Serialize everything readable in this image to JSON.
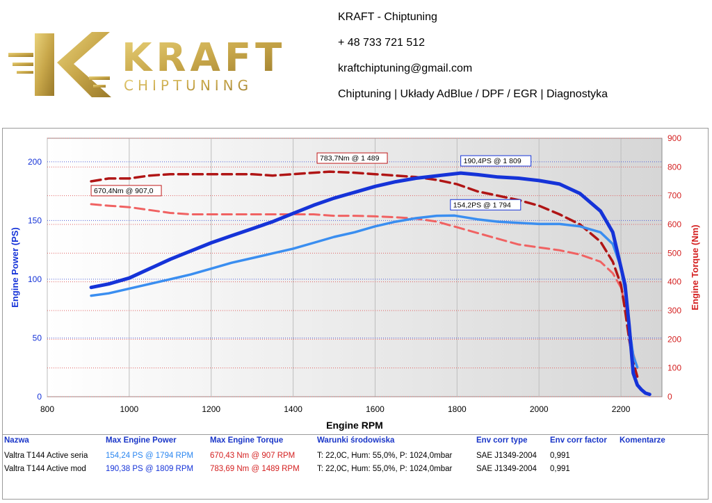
{
  "header": {
    "brand_main": "KRAFT",
    "brand_sub": "CHIPTUNING",
    "company": "KRAFT - Chiptuning",
    "phone": "+ 48 733 721 512",
    "email": "kraftchiptuning@gmail.com",
    "services": "Chiptuning | Układy AdBlue / DPF / EGR | Diagnostyka",
    "logo_color": "#c8a74a"
  },
  "chart_data": {
    "type": "line",
    "xlabel": "Engine RPM",
    "ylabel_left": "Engine Power (PS)",
    "ylabel_right": "Engine Torque (Nm)",
    "xlim": [
      800,
      2300
    ],
    "ylim_left": [
      0,
      220
    ],
    "ylim_right": [
      0,
      900
    ],
    "x_ticks": [
      "800",
      "1000",
      "1200",
      "1400",
      "1600",
      "1800",
      "2000",
      "2200"
    ],
    "y_left_ticks": [
      "0",
      "50",
      "100",
      "150",
      "200"
    ],
    "y_right_ticks": [
      "0",
      "100",
      "200",
      "300",
      "400",
      "500",
      "600",
      "700",
      "800",
      "900"
    ],
    "grid": true,
    "series": [
      {
        "name": "Valtra T144 Active mod",
        "kind": "power",
        "axis": "left",
        "style": "solid-thick",
        "color": "#1533d8",
        "x": [
          907,
          950,
          1000,
          1050,
          1100,
          1150,
          1200,
          1250,
          1300,
          1350,
          1400,
          1450,
          1500,
          1550,
          1600,
          1650,
          1700,
          1750,
          1809,
          1850,
          1900,
          1950,
          2000,
          2050,
          2100,
          2150,
          2180,
          2200,
          2210,
          2220,
          2230,
          2240,
          2250,
          2260,
          2270
        ],
        "y": [
          93,
          96,
          101,
          109,
          117,
          124,
          131,
          137,
          143,
          149,
          156,
          163,
          169,
          174,
          179,
          183,
          186,
          188,
          190.4,
          189,
          187,
          186,
          184,
          181,
          173,
          158,
          140,
          110,
          95,
          60,
          20,
          10,
          6,
          3,
          2
        ]
      },
      {
        "name": "Valtra T144 Active seria",
        "kind": "power",
        "axis": "left",
        "style": "solid",
        "color": "#3a8ef0",
        "x": [
          907,
          950,
          1000,
          1050,
          1100,
          1150,
          1200,
          1250,
          1300,
          1350,
          1400,
          1450,
          1500,
          1550,
          1600,
          1650,
          1700,
          1750,
          1794,
          1850,
          1900,
          1950,
          2000,
          2050,
          2100,
          2150,
          2180,
          2200,
          2210,
          2220,
          2230,
          2240
        ],
        "y": [
          86,
          88,
          92,
          96,
          100,
          104,
          109,
          114,
          118,
          122,
          126,
          131,
          136,
          140,
          145,
          149,
          152,
          154,
          154.2,
          151,
          149,
          148,
          147,
          147,
          145,
          140,
          130,
          110,
          90,
          60,
          35,
          25
        ]
      },
      {
        "name": "Valtra T144 Active mod",
        "kind": "torque",
        "axis": "right",
        "style": "dashed-thick",
        "color": "#b01515",
        "x": [
          907,
          950,
          1000,
          1050,
          1100,
          1150,
          1200,
          1250,
          1300,
          1350,
          1400,
          1450,
          1489,
          1550,
          1600,
          1650,
          1700,
          1750,
          1800,
          1850,
          1900,
          1950,
          2000,
          2050,
          2100,
          2150,
          2180,
          2200,
          2210,
          2220,
          2230,
          2240
        ],
        "y": [
          750,
          760,
          760,
          770,
          775,
          775,
          775,
          775,
          775,
          770,
          775,
          780,
          783.7,
          780,
          775,
          770,
          765,
          755,
          740,
          715,
          700,
          685,
          665,
          635,
          600,
          540,
          470,
          390,
          300,
          200,
          120,
          70
        ]
      },
      {
        "name": "Valtra T144 Active seria",
        "kind": "torque",
        "axis": "right",
        "style": "dashed",
        "color": "#f06262",
        "x": [
          907,
          950,
          1000,
          1050,
          1100,
          1150,
          1200,
          1250,
          1300,
          1350,
          1400,
          1450,
          1500,
          1550,
          1600,
          1650,
          1700,
          1750,
          1800,
          1850,
          1900,
          1950,
          2000,
          2050,
          2100,
          2150,
          2180,
          2200,
          2210,
          2220,
          2230,
          2240
        ],
        "y": [
          670.4,
          665,
          660,
          650,
          640,
          635,
          635,
          635,
          635,
          635,
          635,
          635,
          630,
          630,
          628,
          625,
          620,
          610,
          590,
          570,
          550,
          530,
          520,
          510,
          495,
          470,
          430,
          380,
          320,
          240,
          150,
          100
        ]
      }
    ],
    "annotations": [
      {
        "text": "783,7Nm @ 1 489",
        "x": 1489,
        "y": 783.7,
        "axis": "right",
        "color": "#c01818"
      },
      {
        "text": "670,4Nm @ 907,0",
        "x": 907,
        "y": 670.4,
        "axis": "right",
        "color": "#c01818"
      },
      {
        "text": "190,4PS @ 1 809",
        "x": 1809,
        "y": 190.4,
        "axis": "left",
        "color": "#1533d8"
      },
      {
        "text": "154,2PS @ 1 794",
        "x": 1794,
        "y": 154.2,
        "axis": "left",
        "color": "#1533d8"
      }
    ]
  },
  "table": {
    "headers": [
      "Nazwa",
      "Max Engine Power",
      "Max Engine Torque",
      "Warunki środowiska",
      "Env corr type",
      "Env corr factor",
      "Komentarze"
    ],
    "rows": [
      [
        "Valtra T144 Active seria",
        "154,24 PS @ 1794 RPM",
        "670,43 Nm @ 907 RPM",
        "T: 22,0C, Hum: 55,0%, P: 1024,0mbar",
        "SAE J1349-2004",
        "0,991",
        ""
      ],
      [
        "Valtra T144 Active mod",
        "190,38 PS @ 1809 RPM",
        "783,69 Nm @ 1489 RPM",
        "T: 22,0C, Hum: 55,0%, P: 1024,0mbar",
        "SAE J1349-2004",
        "0,991",
        ""
      ]
    ]
  }
}
